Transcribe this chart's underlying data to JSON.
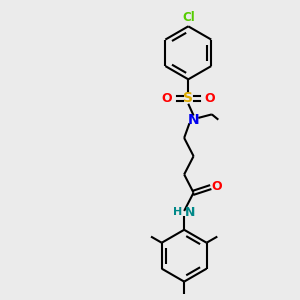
{
  "bg_color": "#ebebeb",
  "bond_color": "#000000",
  "cl_color": "#55cc00",
  "s_color": "#ddaa00",
  "o_color": "#ff0000",
  "n_color": "#0000ee",
  "nh_color": "#008888",
  "lw": 1.5,
  "figsize": [
    3.0,
    3.0
  ],
  "dpi": 100,
  "xlim": [
    0,
    10
  ],
  "ylim": [
    0,
    10
  ]
}
